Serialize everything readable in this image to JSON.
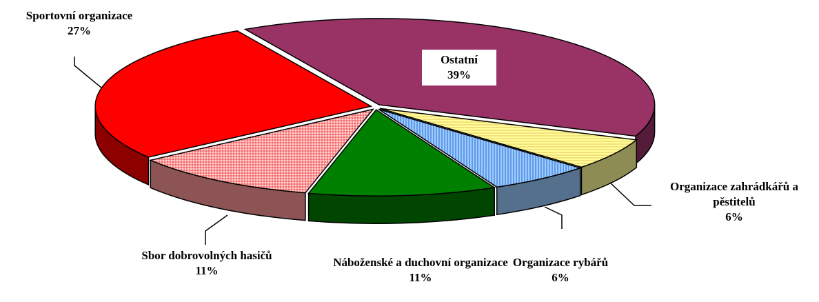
{
  "chart_data": {
    "type": "pie",
    "categories": [
      "Ostatní",
      "Organizace zahrádkářů a pěstitelů",
      "Organizace rybářů",
      "Náboženské a duchovní organizace",
      "Sbor dobrovolných hasičů",
      "Sportovní organizace"
    ],
    "values": [
      39,
      6,
      6,
      11,
      11,
      27
    ],
    "value_labels": [
      "39%",
      "6%",
      "6%",
      "11%",
      "11%",
      "27%"
    ],
    "colors": [
      "#993366",
      "#ffff99",
      "#99ccff",
      "#008000",
      "#ff9999",
      "#ff0000"
    ]
  }
}
